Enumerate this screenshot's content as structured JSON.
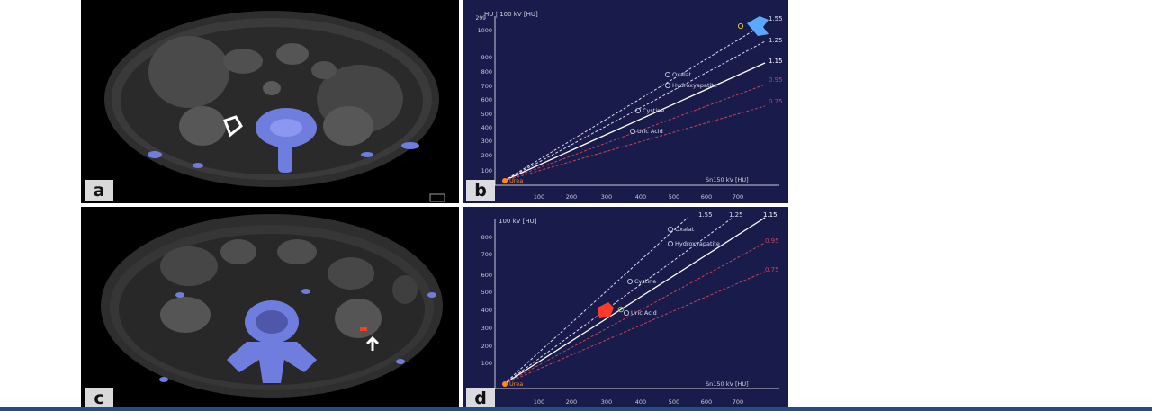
{
  "panels": {
    "a": {
      "label": "a"
    },
    "b": {
      "label": "b",
      "y_axis_title": "HU | 100 kV [HU]",
      "x_axis_title": "Sn150 kV [HU]",
      "y_ticks": [
        "100",
        "200",
        "300",
        "400",
        "500",
        "600",
        "700",
        "800",
        "900",
        "1000"
      ],
      "y_top_label": "299",
      "x_ticks": [
        "100",
        "200",
        "300",
        "400",
        "500",
        "600",
        "700"
      ],
      "ratio_lines": [
        "1.55",
        "1.25",
        "1.15",
        "0.95",
        "0.75"
      ],
      "markers": [
        "Urea",
        "Uric Acid",
        "Cystine",
        "Hydroxyapatite",
        "Oxalat"
      ]
    },
    "c": {
      "label": "c"
    },
    "d": {
      "label": "d",
      "y_axis_title": "100 kV [HU]",
      "x_axis_title": "Sn150 kV [HU]",
      "y_ticks": [
        "100",
        "200",
        "300",
        "400",
        "500",
        "600",
        "700",
        "800"
      ],
      "x_ticks": [
        "100",
        "200",
        "300",
        "400",
        "500",
        "600",
        "700"
      ],
      "ratio_lines": [
        "1.55",
        "1.25",
        "1.15",
        "0.95",
        "0.75"
      ],
      "markers": [
        "Urea",
        "Uric Acid",
        "Cystine",
        "Hydroxyapatite",
        "Oxalat"
      ]
    }
  },
  "colors": {
    "plot_background": "#191c4a",
    "ratio_line_white": "#d9dcf2",
    "ratio_line_red": "#c2445a",
    "highlight_blue": "#5aa8ff",
    "highlight_red": "#ff3a2a",
    "urea_marker": "#ff8a1a"
  }
}
